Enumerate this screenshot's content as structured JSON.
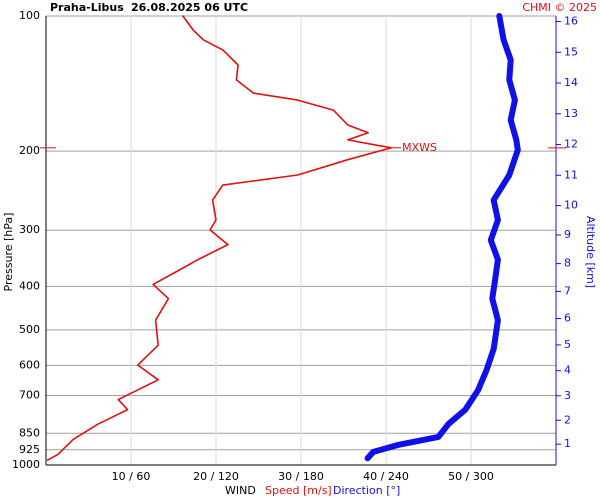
{
  "chart_data": {
    "type": "profile",
    "title": "Praha-Libus",
    "subtitle": "26.08.2025 06 UTC",
    "credit": "CHMI © 2025",
    "y_label": "Pressure [hPa]",
    "y2_label": "Altitude [km]",
    "legend_title": "WIND",
    "annotation": "MXWS",
    "ylim": [
      1000,
      100
    ],
    "log_y": true,
    "yticks": [
      100,
      200,
      300,
      400,
      500,
      600,
      700,
      850,
      925,
      1000
    ],
    "xlim": [
      0,
      60
    ],
    "x2lim": [
      0,
      360
    ],
    "xticks": [
      {
        "value": 10,
        "label": "10 / 60"
      },
      {
        "value": 20,
        "label": "20 / 120"
      },
      {
        "value": 30,
        "label": "30 / 180"
      },
      {
        "value": 40,
        "label": "40 / 240"
      },
      {
        "value": 50,
        "label": "50 / 300"
      }
    ],
    "y2ticks": [
      1,
      2,
      3,
      4,
      5,
      6,
      7,
      8,
      9,
      10,
      11,
      12,
      13,
      14,
      15,
      16
    ],
    "grid": true,
    "series": [
      {
        "name": "Speed [m/s]",
        "color": "#e01010",
        "axis": "x",
        "pressure": [
          100,
          107.4,
          113,
          119,
          128.6,
          138.8,
          148.5,
          153.9,
          162,
          174.9,
          182,
          188.8,
          196.6,
          209,
          226,
          238,
          257,
          284.6,
          299.5,
          323,
          348.7,
          367,
          396,
          426,
          476,
          541,
          599,
          646,
          715,
          753,
          811,
          877,
          947,
          975
        ],
        "values": [
          16.1,
          17.3,
          18.5,
          20.8,
          22.6,
          22.4,
          24.4,
          29.6,
          33.8,
          35.5,
          37.9,
          35.5,
          40.6,
          35.5,
          29.6,
          20.8,
          19.6,
          20,
          19.3,
          21.4,
          17.9,
          15.8,
          12.6,
          14.4,
          12.9,
          13.2,
          10.8,
          13.2,
          8.5,
          9.6,
          6.1,
          3.2,
          1.4,
          0.2
        ]
      },
      {
        "name": "Direction [°]",
        "color": "#1010e8",
        "axis": "x2",
        "pressure": [
          100,
          113,
          125.3,
          138.8,
          153.9,
          170.5,
          188.8,
          198.8,
          226,
          257,
          284.6,
          315.5,
          348.7,
          387,
          426,
          476,
          551,
          614,
          681,
          753,
          811,
          866,
          903,
          935,
          966
        ],
        "values": [
          320,
          323,
          328,
          327,
          331,
          328,
          332,
          333,
          327,
          316,
          319,
          314,
          319,
          317,
          315,
          319,
          316,
          311,
          305,
          296,
          284,
          277,
          248,
          231,
          227
        ]
      }
    ]
  }
}
